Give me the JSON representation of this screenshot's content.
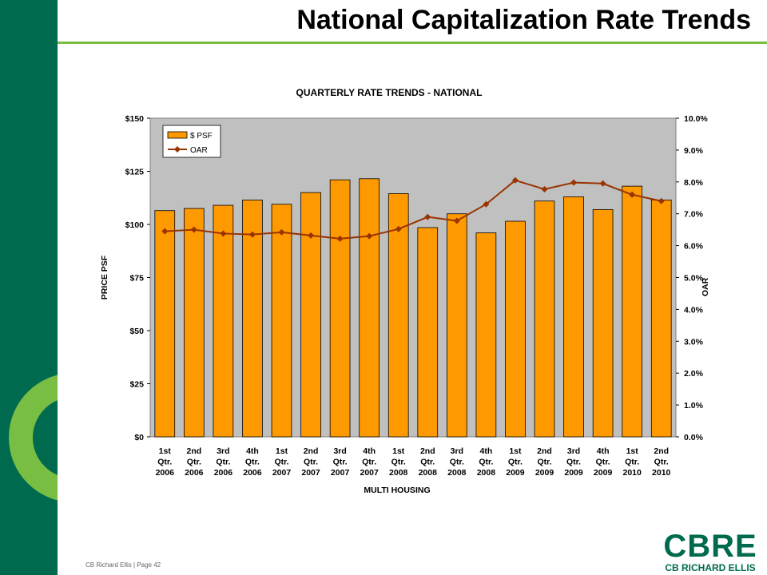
{
  "slide": {
    "title": "National Capitalization Rate Trends",
    "footer": "CB Richard Ellis | Page 42",
    "logo": {
      "wordmark": "CBRE",
      "subtitle": "CB RICHARD ELLIS"
    }
  },
  "colors": {
    "brand_green": "#006a4e",
    "accent_green": "#78be43",
    "bar_fill": "#ff9900",
    "line": "#993300",
    "plot_bg": "#c0c0c0"
  },
  "chart_data": {
    "type": "bar",
    "title": "QUARTERLY RATE TRENDS - NATIONAL",
    "xlabel": "MULTI HOUSING",
    "ylabel": "PRICE PSF",
    "y2label": "OAR",
    "ylim": [
      0,
      150
    ],
    "y2lim": [
      0,
      10
    ],
    "yticks": [
      "$0",
      "$25",
      "$50",
      "$75",
      "$100",
      "$125",
      "$150"
    ],
    "y2ticks": [
      "0.0%",
      "1.0%",
      "2.0%",
      "3.0%",
      "4.0%",
      "5.0%",
      "6.0%",
      "7.0%",
      "8.0%",
      "9.0%",
      "10.0%"
    ],
    "grid": false,
    "legend_position": "top-left",
    "categories": [
      [
        "1st",
        "Qtr.",
        "2006"
      ],
      [
        "2nd",
        "Qtr.",
        "2006"
      ],
      [
        "3rd",
        "Qtr.",
        "2006"
      ],
      [
        "4th",
        "Qtr.",
        "2006"
      ],
      [
        "1st",
        "Qtr.",
        "2007"
      ],
      [
        "2nd",
        "Qtr.",
        "2007"
      ],
      [
        "3rd",
        "Qtr.",
        "2007"
      ],
      [
        "4th",
        "Qtr.",
        "2007"
      ],
      [
        "1st",
        "Qtr.",
        "2008"
      ],
      [
        "2nd",
        "Qtr.",
        "2008"
      ],
      [
        "3rd",
        "Qtr.",
        "2008"
      ],
      [
        "4th",
        "Qtr.",
        "2008"
      ],
      [
        "1st",
        "Qtr.",
        "2009"
      ],
      [
        "2nd",
        "Qtr.",
        "2009"
      ],
      [
        "3rd",
        "Qtr.",
        "2009"
      ],
      [
        "4th",
        "Qtr.",
        "2009"
      ],
      [
        "1st",
        "Qtr.",
        "2010"
      ],
      [
        "2nd",
        "Qtr.",
        "2010"
      ]
    ],
    "series": [
      {
        "name": "$ PSF",
        "kind": "bar",
        "axis": "left",
        "values": [
          106.5,
          107.5,
          109,
          111.5,
          109.5,
          115,
          121,
          121.5,
          114.5,
          98.5,
          105,
          96,
          101.5,
          111,
          113,
          107,
          118,
          111.5
        ]
      },
      {
        "name": "OAR",
        "kind": "line",
        "axis": "right",
        "values": [
          6.45,
          6.5,
          6.38,
          6.35,
          6.42,
          6.32,
          6.22,
          6.3,
          6.52,
          6.9,
          6.78,
          7.3,
          8.05,
          7.77,
          7.98,
          7.95,
          7.6,
          7.4
        ]
      }
    ]
  }
}
